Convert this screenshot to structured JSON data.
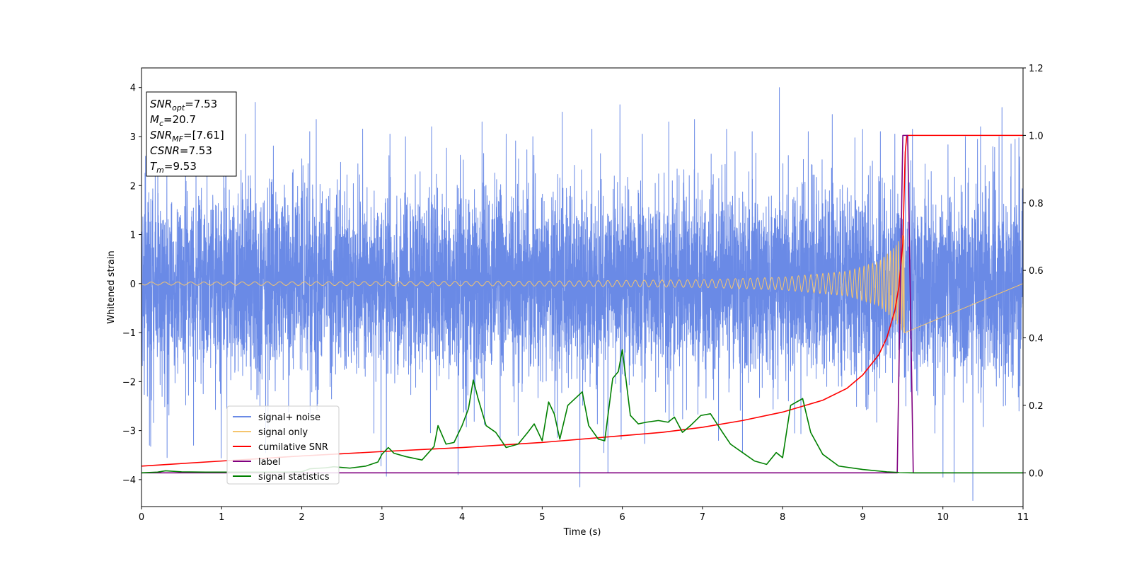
{
  "chart_data": {
    "type": "line",
    "xlabel": "Time (s)",
    "ylabel": "Whitened strain",
    "xlim": [
      0,
      11
    ],
    "ylim": [
      -4.55,
      4.4
    ],
    "y2lim": [
      -0.1,
      1.2
    ],
    "xticks": [
      0,
      1,
      2,
      3,
      4,
      5,
      6,
      7,
      8,
      9,
      10,
      11
    ],
    "yticks": [
      -4,
      -3,
      -2,
      -1,
      0,
      1,
      2,
      3,
      4
    ],
    "y2ticks": [
      "0.0",
      "0.2",
      "0.4",
      "0.6",
      "0.8",
      "1.0",
      "1.2"
    ],
    "grid": false,
    "legend_position": "lower-left",
    "stats_box": [
      {
        "base": "SNR",
        "sub": "opt",
        "value": "=7.53"
      },
      {
        "base": "M",
        "sub": "c",
        "value": "=20.7"
      },
      {
        "base": "SNR",
        "sub": "MF",
        "value": "=[7.61]"
      },
      {
        "base": "CSNR",
        "sub": "",
        "value": "=7.53"
      },
      {
        "base": "T",
        "sub": "m",
        "value": "=9.53"
      }
    ],
    "series": [
      {
        "name": "signal+ noise",
        "axis": "left",
        "color": "#6a8ae6",
        "kind": "noise",
        "merger_time": 9.53,
        "spikes": [
          {
            "t": 0.05,
            "v": 2.6
          },
          {
            "t": 0.1,
            "v": -3.3
          },
          {
            "t": 0.32,
            "v": -3.55
          },
          {
            "t": 0.55,
            "v": 2.85
          },
          {
            "t": 0.65,
            "v": -3.3
          },
          {
            "t": 1.3,
            "v": 3.05
          },
          {
            "t": 1.55,
            "v": -3.45
          },
          {
            "t": 2.1,
            "v": 3.1
          },
          {
            "t": 2.18,
            "v": 3.35
          },
          {
            "t": 2.9,
            "v": -3.05
          },
          {
            "t": 3.1,
            "v": 3.05
          },
          {
            "t": 3.62,
            "v": 3.2
          },
          {
            "t": 3.95,
            "v": -3.9
          },
          {
            "t": 4.25,
            "v": 3.3
          },
          {
            "t": 4.55,
            "v": 3.05
          },
          {
            "t": 4.7,
            "v": -3.1
          },
          {
            "t": 5.25,
            "v": 3.5
          },
          {
            "t": 5.47,
            "v": -4.15
          },
          {
            "t": 5.62,
            "v": 3.15
          },
          {
            "t": 5.77,
            "v": -3.45
          },
          {
            "t": 5.82,
            "v": -3.85
          },
          {
            "t": 5.97,
            "v": 3.65
          },
          {
            "t": 6.25,
            "v": 3.05
          },
          {
            "t": 6.58,
            "v": 3.3
          },
          {
            "t": 6.9,
            "v": 3.35
          },
          {
            "t": 7.2,
            "v": -3.2
          },
          {
            "t": 7.3,
            "v": 3.15
          },
          {
            "t": 7.5,
            "v": -3.45
          },
          {
            "t": 7.62,
            "v": 3.1
          },
          {
            "t": 7.96,
            "v": 4.0
          },
          {
            "t": 8.15,
            "v": -3.05
          },
          {
            "t": 8.32,
            "v": 3.1
          },
          {
            "t": 8.62,
            "v": 3.45
          },
          {
            "t": 9.22,
            "v": 3.1
          },
          {
            "t": 9.4,
            "v": 3.05
          },
          {
            "t": 9.62,
            "v": 3.15
          },
          {
            "t": 9.9,
            "v": -3.05
          },
          {
            "t": 10.0,
            "v": -3.95
          },
          {
            "t": 10.14,
            "v": -4.05
          },
          {
            "t": 10.28,
            "v": 3.0
          },
          {
            "t": 10.47,
            "v": 3.2
          },
          {
            "t": 10.7,
            "v": 3.0
          },
          {
            "t": 10.85,
            "v": 2.85
          },
          {
            "t": 10.95,
            "v": -2.6
          }
        ]
      },
      {
        "name": "signal only",
        "axis": "left",
        "color": "#f5c56e",
        "kind": "chirp",
        "start": 0,
        "end": 9.53,
        "envelope": [
          [
            0,
            0.03
          ],
          [
            5,
            0.05
          ],
          [
            7,
            0.08
          ],
          [
            8,
            0.13
          ],
          [
            8.8,
            0.25
          ],
          [
            9.2,
            0.45
          ],
          [
            9.4,
            0.75
          ],
          [
            9.5,
            1.0
          ],
          [
            9.53,
            1.0
          ]
        ]
      },
      {
        "name": "cumilative SNR",
        "axis": "right",
        "color": "#ff0000",
        "x": [
          0,
          1,
          2,
          3,
          4,
          5,
          6,
          6.5,
          7,
          7.5,
          8,
          8.5,
          8.8,
          9.0,
          9.2,
          9.3,
          9.4,
          9.45,
          9.5,
          9.53,
          9.55,
          11
        ],
        "y": [
          0.02,
          0.035,
          0.05,
          0.063,
          0.075,
          0.09,
          0.11,
          0.12,
          0.135,
          0.155,
          0.18,
          0.215,
          0.25,
          0.29,
          0.35,
          0.4,
          0.48,
          0.55,
          0.68,
          0.95,
          1.0,
          1.0
        ]
      },
      {
        "name": "label",
        "axis": "right",
        "color": "#800080",
        "x": [
          0,
          9.43,
          9.5,
          9.56,
          9.63,
          11
        ],
        "y": [
          0.0,
          0.0,
          1.0,
          1.0,
          0.0,
          0.0
        ]
      },
      {
        "name": "signal statistics",
        "axis": "right",
        "color": "#008000",
        "x": [
          0,
          0.2,
          0.3,
          0.5,
          0.8,
          1.0,
          1.2,
          1.5,
          1.8,
          2.0,
          2.1,
          2.3,
          2.4,
          2.5,
          2.6,
          2.8,
          2.95,
          3.0,
          3.08,
          3.15,
          3.3,
          3.5,
          3.65,
          3.7,
          3.8,
          3.9,
          4.0,
          4.08,
          4.14,
          4.2,
          4.3,
          4.42,
          4.55,
          4.7,
          4.82,
          4.9,
          5.0,
          5.08,
          5.15,
          5.22,
          5.32,
          5.5,
          5.58,
          5.7,
          5.78,
          5.88,
          5.95,
          6.0,
          6.1,
          6.2,
          6.3,
          6.45,
          6.57,
          6.65,
          6.75,
          6.85,
          6.98,
          7.1,
          7.25,
          7.35,
          7.5,
          7.65,
          7.8,
          7.92,
          8.0,
          8.1,
          8.25,
          8.35,
          8.5,
          8.7,
          9.0,
          9.3,
          9.45,
          9.6,
          10,
          11
        ],
        "y": [
          0.0,
          0.002,
          0.006,
          0.003,
          0.002,
          0.002,
          0.002,
          0.002,
          0.002,
          0.003,
          0.012,
          0.015,
          0.018,
          0.016,
          0.014,
          0.02,
          0.032,
          0.055,
          0.075,
          0.058,
          0.048,
          0.038,
          0.078,
          0.14,
          0.085,
          0.09,
          0.14,
          0.19,
          0.275,
          0.22,
          0.14,
          0.12,
          0.075,
          0.085,
          0.12,
          0.145,
          0.095,
          0.21,
          0.175,
          0.1,
          0.2,
          0.24,
          0.14,
          0.1,
          0.095,
          0.28,
          0.3,
          0.365,
          0.17,
          0.145,
          0.15,
          0.155,
          0.15,
          0.165,
          0.12,
          0.14,
          0.17,
          0.175,
          0.12,
          0.085,
          0.06,
          0.035,
          0.025,
          0.06,
          0.045,
          0.2,
          0.22,
          0.12,
          0.055,
          0.02,
          0.01,
          0.003,
          0.001,
          0.0,
          0.0,
          0.0
        ]
      }
    ]
  }
}
